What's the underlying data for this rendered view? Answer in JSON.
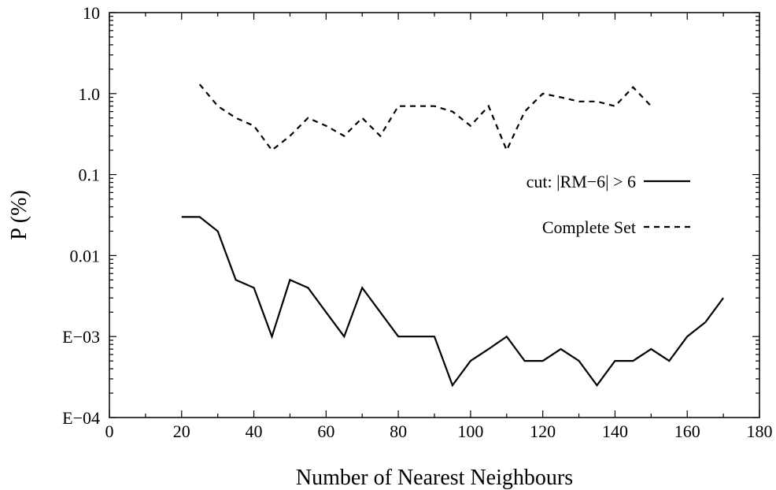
{
  "chart_data": {
    "type": "line",
    "xlabel": "Number of Nearest Neighbours",
    "ylabel": "P (%)",
    "xlim": [
      0,
      180
    ],
    "x_ticks": [
      0,
      20,
      40,
      60,
      80,
      100,
      120,
      140,
      160,
      180
    ],
    "x_tick_labels": [
      "0",
      "20",
      "40",
      "60",
      "80",
      "100",
      "120",
      "140",
      "160",
      "180"
    ],
    "yscale": "log",
    "ylim": [
      0.0001,
      10
    ],
    "y_ticks": [
      0.0001,
      0.001,
      0.01,
      0.1,
      1,
      10
    ],
    "y_tick_labels": [
      "E−04",
      "E−03",
      "0.01",
      "0.1",
      "1.0",
      "10"
    ],
    "grid": false,
    "legend_position": "right",
    "series": [
      {
        "name": "cut: |RM−6| > 6",
        "style": "solid",
        "color": "#000000",
        "x": [
          20,
          25,
          30,
          35,
          40,
          45,
          50,
          55,
          60,
          65,
          70,
          75,
          80,
          85,
          90,
          95,
          100,
          105,
          110,
          115,
          120,
          125,
          130,
          135,
          140,
          145,
          150,
          155,
          160,
          165,
          170
        ],
        "y": [
          0.03,
          0.03,
          0.02,
          0.005,
          0.004,
          0.001,
          0.005,
          0.004,
          0.002,
          0.001,
          0.004,
          0.002,
          0.001,
          0.001,
          0.001,
          0.00025,
          0.0005,
          0.0007,
          0.001,
          0.0005,
          0.0005,
          0.0007,
          0.0005,
          0.00025,
          0.0005,
          0.0005,
          0.0007,
          0.0005,
          0.001,
          0.0015,
          0.003
        ]
      },
      {
        "name": "Complete Set",
        "style": "dashed",
        "color": "#000000",
        "x": [
          25,
          30,
          35,
          40,
          45,
          50,
          55,
          60,
          65,
          70,
          75,
          80,
          85,
          90,
          95,
          100,
          105,
          110,
          115,
          120,
          125,
          130,
          135,
          140,
          145,
          150
        ],
        "y": [
          1.3,
          0.7,
          0.5,
          0.4,
          0.2,
          0.3,
          0.5,
          0.4,
          0.3,
          0.5,
          0.3,
          0.7,
          0.7,
          0.7,
          0.6,
          0.4,
          0.7,
          0.2,
          0.6,
          1.0,
          0.9,
          0.8,
          0.8,
          0.7,
          1.2,
          0.7
        ]
      }
    ]
  }
}
